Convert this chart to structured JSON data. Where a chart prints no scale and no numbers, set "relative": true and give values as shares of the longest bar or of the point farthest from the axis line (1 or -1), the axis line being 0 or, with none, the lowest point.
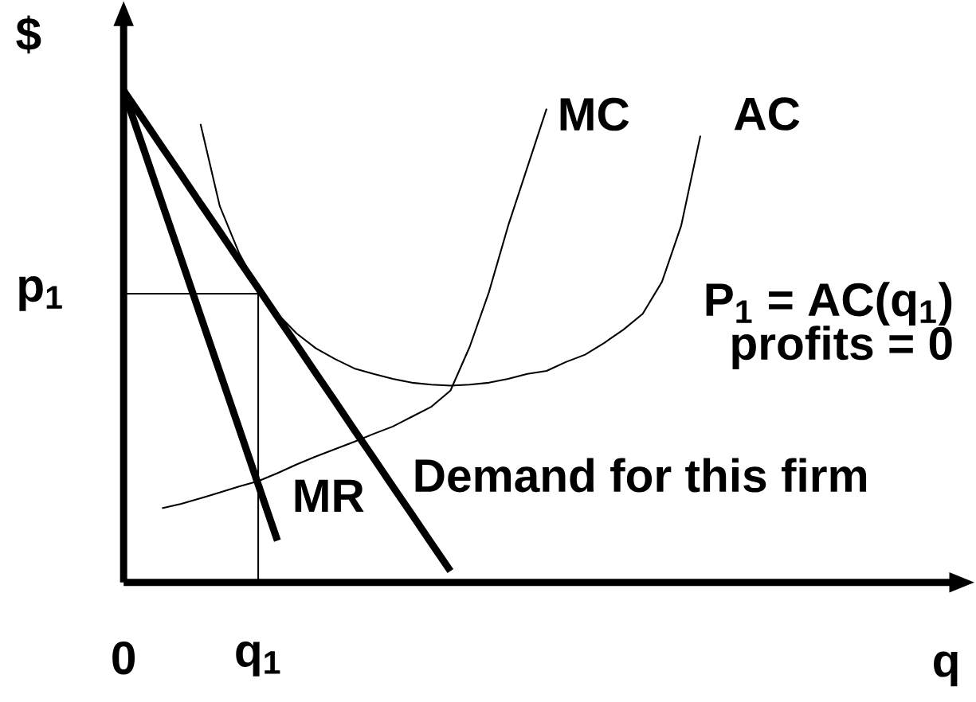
{
  "chart_data": {
    "type": "line",
    "relative": true,
    "xlabel": "q",
    "ylabel": "$",
    "categories": [
      "0",
      null,
      null,
      null,
      null,
      null,
      null,
      "q$_{1}$",
      null,
      null,
      null,
      null,
      null,
      null,
      null,
      null,
      null,
      null,
      null,
      null,
      null,
      null,
      null,
      null,
      null,
      null,
      null,
      null,
      null,
      null,
      null,
      null,
      null,
      null,
      null,
      null,
      null,
      null,
      null,
      null,
      null,
      null,
      null
    ],
    "series": [
      {
        "name": "Demand for this firm",
        "color": "#000000",
        "values": [
          1,
          0.943,
          0.885,
          0.828,
          0.77,
          0.713,
          0.655,
          0.598,
          0.54,
          0.483,
          0.425,
          0.368,
          0.31,
          0.253,
          0.195,
          0.138,
          0.08,
          0.023,
          null,
          null,
          null,
          null,
          null,
          null,
          null,
          null,
          null,
          null,
          null,
          null,
          null,
          null,
          null,
          null,
          null,
          null,
          null,
          null,
          null,
          null,
          null,
          null,
          null
        ]
      },
      {
        "name": "MR",
        "color": "#000000",
        "values": [
          1,
          0.886,
          0.771,
          0.657,
          0.542,
          0.428,
          0.314,
          0.199,
          0.085,
          null,
          null,
          null,
          null,
          null,
          null,
          null,
          null,
          null,
          null,
          null,
          null,
          null,
          null,
          null,
          null,
          null,
          null,
          null,
          null,
          null,
          null,
          null,
          null,
          null,
          null,
          null,
          null,
          null,
          null,
          null,
          null,
          null,
          null
        ]
      },
      {
        "name": "MC",
        "color": "#000000",
        "values": [
          null,
          null,
          0.151,
          0.16,
          0.171,
          0.183,
          0.195,
          0.206,
          0.222,
          0.24,
          0.256,
          0.271,
          0.286,
          0.302,
          0.317,
          0.337,
          0.357,
          0.39,
          0.479,
          0.59,
          0.725,
          0.844,
          0.963,
          null,
          null,
          null,
          null,
          null,
          null,
          null,
          null,
          null,
          null,
          null,
          null,
          null,
          null,
          null,
          null,
          null,
          null,
          null,
          null
        ]
      },
      {
        "name": "AC",
        "color": "#000000",
        "values": [
          null,
          null,
          null,
          null,
          0.932,
          0.765,
          0.67,
          0.598,
          0.546,
          0.506,
          0.476,
          0.454,
          0.435,
          0.424,
          0.414,
          0.406,
          0.402,
          0.4,
          0.402,
          0.406,
          0.414,
          0.424,
          0.43,
          0.448,
          0.463,
          0.487,
          0.514,
          0.546,
          0.611,
          0.725,
          0.908,
          null,
          null,
          null,
          null,
          null,
          null,
          null,
          null,
          null,
          null,
          null,
          null
        ]
      }
    ],
    "ref_lines": [
      {
        "axis": "y",
        "value": 0.587,
        "label": "p$_{1}$",
        "color": "#000000"
      },
      {
        "axis": "x",
        "value": "q$_{1}$",
        "color": "#000000"
      }
    ],
    "annotations": [
      "P$_{1}$ = AC(q$_{1}$)",
      "profits = 0"
    ]
  }
}
